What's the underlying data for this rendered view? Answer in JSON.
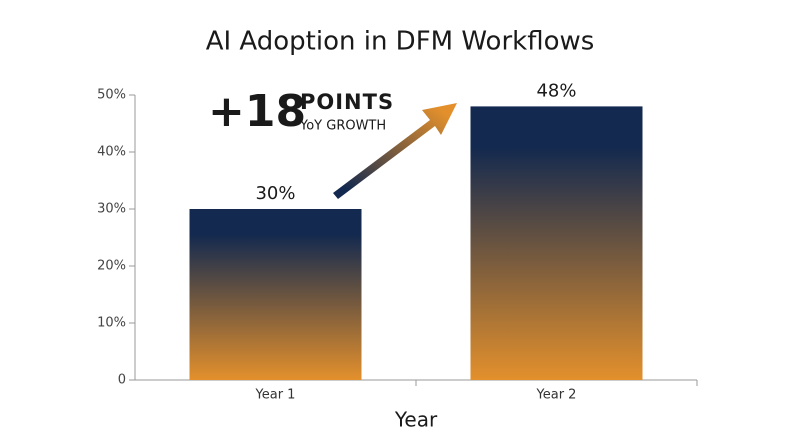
{
  "chart_data": {
    "type": "bar",
    "title": "AI Adoption in DFM Workflows",
    "categories": [
      "Year 1",
      "Year 2"
    ],
    "values": [
      30,
      48
    ],
    "value_labels": [
      "30%",
      "48%"
    ],
    "gradient": [
      "#13294f",
      "#e3902c"
    ],
    "xlabel": "Year",
    "ylim": [
      0,
      50
    ],
    "yticks": [
      0,
      {
        "value": 10,
        "label": "10%"
      },
      {
        "value": 20,
        "label": "20%"
      },
      {
        "value": 30,
        "label": "30%"
      },
      {
        "value": 40,
        "label": "40%"
      },
      {
        "value": 50,
        "label": "50%"
      }
    ],
    "annotation": {
      "big": "+18",
      "word": "POINTS",
      "sub": "YoY GROWTH"
    }
  }
}
